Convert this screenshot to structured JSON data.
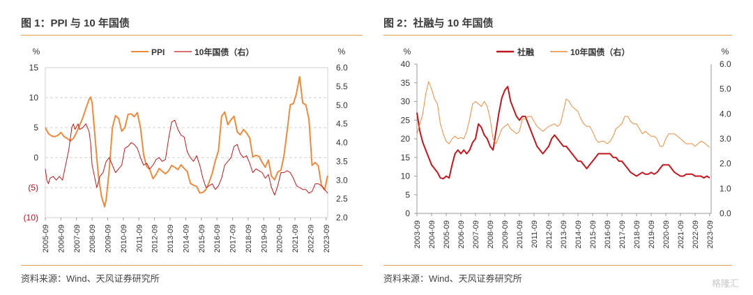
{
  "charts": [
    {
      "title": "图 1：PPI 与 10 年国债",
      "source": "资料来源：Wind、天风证券研究所",
      "left_unit": "%",
      "right_unit": "%",
      "left_tick_labels": [
        "15",
        "10",
        "5",
        "0",
        "(5)",
        "(10)"
      ],
      "left_tick_values": [
        15,
        10,
        5,
        0,
        -5,
        -10
      ],
      "left_tick_colors": [
        "#333333",
        "#333333",
        "#333333",
        "#333333",
        "#d0021b",
        "#d0021b"
      ],
      "right_tick_labels": [
        "6.0",
        "5.5",
        "5.0",
        "4.5",
        "4.0",
        "3.5",
        "3.0",
        "2.5",
        "2.0"
      ],
      "right_tick_values": [
        6.0,
        5.5,
        5.0,
        4.5,
        4.0,
        3.5,
        3.0,
        2.5,
        2.0
      ],
      "x_tick_labels": [
        "2005-09",
        "2006-09",
        "2007-09",
        "2008-09",
        "2009-09",
        "2010-09",
        "2011-09",
        "2012-09",
        "2013-09",
        "2014-09",
        "2015-09",
        "2016-09",
        "2017-09",
        "2018-09",
        "2019-09",
        "2020-09",
        "2021-09",
        "2022-09",
        "2023-09"
      ]
    },
    {
      "title": "图 2：社融与 10 年国债",
      "source": "资料来源：Wind、天风证券研究所",
      "left_unit": "%",
      "right_unit": "%",
      "left_tick_labels": [
        "40",
        "35",
        "30",
        "25",
        "20",
        "15",
        "10",
        "5",
        "0"
      ],
      "left_tick_values": [
        40,
        35,
        30,
        25,
        20,
        15,
        10,
        5,
        0
      ],
      "right_tick_labels": [
        "6.0",
        "5.0",
        "4.0",
        "3.0",
        "2.0",
        "1.0",
        "0.0"
      ],
      "right_tick_values": [
        6.0,
        5.0,
        4.0,
        3.0,
        2.0,
        1.0,
        0.0
      ],
      "x_tick_labels": [
        "2003-09",
        "2004-09",
        "2005-09",
        "2006-09",
        "2007-09",
        "2008-09",
        "2009-09",
        "2010-09",
        "2011-09",
        "2012-09",
        "2013-09",
        "2014-09",
        "2015-09",
        "2016-09",
        "2017-09",
        "2018-09",
        "2019-09",
        "2020-09",
        "2021-09",
        "2022-09",
        "2023-09"
      ]
    }
  ],
  "watermark": "格隆汇",
  "chart_data": [
    {
      "type": "line",
      "title": "图 1：PPI 与 10 年国债",
      "ylabel": "%",
      "y2label": "%",
      "ylim": [
        -10,
        15
      ],
      "y2lim": [
        2.0,
        6.0
      ],
      "xlim": [
        2005.7,
        2023.8
      ],
      "grid": true,
      "legend": "top",
      "series": [
        {
          "name": "PPI",
          "axis": "left",
          "color": "#ed8a3c",
          "width": 2.0,
          "x": [
            2005.7,
            2005.9,
            2006.1,
            2006.3,
            2006.5,
            2006.7,
            2006.9,
            2007.1,
            2007.3,
            2007.5,
            2007.7,
            2007.9,
            2008.1,
            2008.3,
            2008.5,
            2008.6,
            2008.7,
            2008.9,
            2009.1,
            2009.3,
            2009.5,
            2009.6,
            2009.8,
            2010.0,
            2010.2,
            2010.4,
            2010.6,
            2010.8,
            2011.0,
            2011.2,
            2011.4,
            2011.6,
            2011.8,
            2012.0,
            2012.2,
            2012.4,
            2012.6,
            2012.8,
            2013.0,
            2013.2,
            2013.4,
            2013.6,
            2013.8,
            2014.0,
            2014.2,
            2014.4,
            2014.6,
            2014.8,
            2015.0,
            2015.2,
            2015.4,
            2015.6,
            2015.8,
            2016.0,
            2016.2,
            2016.4,
            2016.6,
            2016.8,
            2017.0,
            2017.2,
            2017.4,
            2017.6,
            2017.8,
            2018.0,
            2018.2,
            2018.4,
            2018.6,
            2018.8,
            2019.0,
            2019.2,
            2019.4,
            2019.6,
            2019.8,
            2020.0,
            2020.2,
            2020.4,
            2020.6,
            2020.8,
            2021.0,
            2021.2,
            2021.4,
            2021.6,
            2021.8,
            2022.0,
            2022.2,
            2022.4,
            2022.6,
            2022.8,
            2023.0,
            2023.2,
            2023.4,
            2023.6,
            2023.8
          ],
          "y": [
            5.0,
            4.0,
            3.6,
            3.5,
            3.7,
            4.2,
            3.5,
            3.2,
            2.8,
            3.2,
            4.2,
            5.4,
            6.6,
            8.2,
            9.7,
            10.1,
            9.2,
            3.0,
            -3.0,
            -6.5,
            -8.2,
            -7.0,
            -2.0,
            5.0,
            7.0,
            6.5,
            4.4,
            5.0,
            7.2,
            7.3,
            6.8,
            7.5,
            5.0,
            0.5,
            -1.5,
            -2.0,
            -3.5,
            -2.8,
            -1.8,
            -2.3,
            -2.7,
            -2.2,
            -1.3,
            -1.6,
            -2.0,
            -1.2,
            -1.8,
            -2.3,
            -4.3,
            -4.6,
            -4.8,
            -5.9,
            -5.8,
            -5.3,
            -4.1,
            -2.6,
            -0.5,
            1.2,
            6.9,
            7.6,
            5.5,
            6.3,
            6.9,
            4.3,
            3.8,
            4.7,
            4.1,
            3.3,
            0.1,
            0.4,
            0.2,
            -0.8,
            -1.6,
            -0.4,
            -3.1,
            -3.7,
            -2.4,
            -2.1,
            0.3,
            4.4,
            8.8,
            9.0,
            10.7,
            13.5,
            9.1,
            8.8,
            6.4,
            -1.3,
            -0.8,
            -1.4,
            -4.6,
            -5.4,
            -3.0
          ]
        },
        {
          "name": "10年国债（右）",
          "axis": "right",
          "color": "#c0171c",
          "width": 1.0,
          "x": [
            2005.7,
            2005.8,
            2005.9,
            2006.0,
            2006.2,
            2006.4,
            2006.6,
            2006.8,
            2007.0,
            2007.2,
            2007.4,
            2007.5,
            2007.6,
            2007.8,
            2007.9,
            2008.1,
            2008.3,
            2008.5,
            2008.6,
            2008.7,
            2008.9,
            2009.0,
            2009.2,
            2009.4,
            2009.6,
            2009.8,
            2010.0,
            2010.2,
            2010.4,
            2010.6,
            2010.8,
            2011.0,
            2011.2,
            2011.4,
            2011.6,
            2011.8,
            2012.0,
            2012.2,
            2012.4,
            2012.6,
            2012.8,
            2013.0,
            2013.2,
            2013.4,
            2013.6,
            2013.8,
            2014.0,
            2014.2,
            2014.4,
            2014.6,
            2014.8,
            2015.0,
            2015.2,
            2015.4,
            2015.6,
            2015.8,
            2016.0,
            2016.2,
            2016.4,
            2016.6,
            2016.8,
            2017.0,
            2017.2,
            2017.4,
            2017.6,
            2017.8,
            2018.0,
            2018.2,
            2018.4,
            2018.6,
            2018.8,
            2019.0,
            2019.2,
            2019.4,
            2019.6,
            2019.8,
            2020.0,
            2020.2,
            2020.4,
            2020.6,
            2020.8,
            2021.0,
            2021.2,
            2021.4,
            2021.6,
            2021.8,
            2022.0,
            2022.2,
            2022.4,
            2022.6,
            2022.8,
            2023.0,
            2023.2,
            2023.4,
            2023.6,
            2023.8
          ],
          "y": [
            3.3,
            3.0,
            2.9,
            3.05,
            3.1,
            3.0,
            3.1,
            3.0,
            3.4,
            3.8,
            4.4,
            4.5,
            4.35,
            4.5,
            4.35,
            4.4,
            4.5,
            4.3,
            4.0,
            3.4,
            3.0,
            2.8,
            3.1,
            3.2,
            3.5,
            3.6,
            3.4,
            3.2,
            3.3,
            3.4,
            3.85,
            3.9,
            4.0,
            3.95,
            3.85,
            3.6,
            3.4,
            3.45,
            3.3,
            3.4,
            3.55,
            3.6,
            3.5,
            3.55,
            4.1,
            4.55,
            4.6,
            4.35,
            4.2,
            4.15,
            3.75,
            3.6,
            3.5,
            3.65,
            3.4,
            3.05,
            2.8,
            2.85,
            2.9,
            2.75,
            2.85,
            3.05,
            3.4,
            3.5,
            3.6,
            3.9,
            3.95,
            3.7,
            3.6,
            3.65,
            3.45,
            3.2,
            3.3,
            3.25,
            3.2,
            3.05,
            3.15,
            2.8,
            2.6,
            2.85,
            3.2,
            3.2,
            3.25,
            3.2,
            3.05,
            2.85,
            2.8,
            2.75,
            2.75,
            2.65,
            2.7,
            2.9,
            2.9,
            2.85,
            2.75,
            2.65
          ]
        }
      ]
    },
    {
      "type": "line",
      "title": "图 2：社融与 10 年国债",
      "ylabel": "%",
      "y2label": "%",
      "ylim": [
        0,
        40
      ],
      "y2lim": [
        0.0,
        6.0
      ],
      "xlim": [
        2003.7,
        2023.8
      ],
      "grid": false,
      "legend": "top",
      "series": [
        {
          "name": "社融",
          "axis": "left",
          "color": "#c0171c",
          "width": 2.0,
          "x": [
            2003.7,
            2003.9,
            2004.1,
            2004.3,
            2004.5,
            2004.7,
            2004.9,
            2005.1,
            2005.3,
            2005.5,
            2005.7,
            2005.9,
            2006.1,
            2006.3,
            2006.5,
            2006.7,
            2006.9,
            2007.1,
            2007.3,
            2007.5,
            2007.7,
            2007.9,
            2008.1,
            2008.3,
            2008.5,
            2008.7,
            2008.9,
            2009.1,
            2009.3,
            2009.5,
            2009.7,
            2009.9,
            2010.1,
            2010.3,
            2010.5,
            2010.7,
            2010.9,
            2011.1,
            2011.3,
            2011.5,
            2011.7,
            2011.9,
            2012.1,
            2012.3,
            2012.5,
            2012.7,
            2012.9,
            2013.1,
            2013.3,
            2013.5,
            2013.7,
            2013.9,
            2014.1,
            2014.3,
            2014.5,
            2014.7,
            2014.9,
            2015.1,
            2015.3,
            2015.5,
            2015.7,
            2015.9,
            2016.1,
            2016.3,
            2016.5,
            2016.7,
            2016.9,
            2017.1,
            2017.3,
            2017.5,
            2017.7,
            2017.9,
            2018.1,
            2018.3,
            2018.5,
            2018.7,
            2018.9,
            2019.1,
            2019.3,
            2019.5,
            2019.7,
            2019.9,
            2020.1,
            2020.3,
            2020.5,
            2020.7,
            2020.9,
            2021.1,
            2021.3,
            2021.5,
            2021.7,
            2021.9,
            2022.1,
            2022.3,
            2022.5,
            2022.7,
            2022.9,
            2023.1,
            2023.3,
            2023.5,
            2023.7
          ],
          "y": [
            27,
            22,
            19,
            17,
            15,
            13,
            12,
            11,
            9.5,
            9.3,
            10,
            9.5,
            13,
            16,
            17,
            16,
            17,
            16,
            17,
            19,
            20,
            24,
            23,
            21,
            20,
            18,
            17,
            22,
            27,
            31,
            33,
            34,
            30,
            28,
            26,
            25,
            26,
            26,
            24,
            22,
            20,
            18,
            17,
            16,
            17,
            18,
            20,
            21,
            20,
            19,
            18,
            18,
            17,
            16,
            15,
            14,
            14,
            13,
            12,
            13,
            14,
            15,
            16,
            16,
            16,
            16,
            16,
            15,
            15,
            14,
            14,
            13,
            12,
            11,
            10.5,
            10,
            10.5,
            11,
            10.5,
            10.5,
            11,
            10.5,
            11,
            12,
            13,
            13,
            13,
            12,
            11,
            10.5,
            10,
            10,
            10.5,
            10.5,
            10.5,
            10,
            10,
            10,
            9.5,
            10,
            9.5
          ]
        },
        {
          "name": "10年国债（右）",
          "axis": "right",
          "color": "#ed8a3c",
          "width": 1.0,
          "x": [
            2003.7,
            2003.9,
            2004.1,
            2004.3,
            2004.5,
            2004.7,
            2004.9,
            2005.1,
            2005.3,
            2005.5,
            2005.7,
            2005.9,
            2006.1,
            2006.3,
            2006.5,
            2006.7,
            2006.9,
            2007.1,
            2007.3,
            2007.5,
            2007.7,
            2007.9,
            2008.1,
            2008.3,
            2008.5,
            2008.7,
            2008.9,
            2009.1,
            2009.3,
            2009.5,
            2009.7,
            2009.9,
            2010.1,
            2010.3,
            2010.5,
            2010.7,
            2010.9,
            2011.1,
            2011.3,
            2011.5,
            2011.7,
            2011.9,
            2012.1,
            2012.3,
            2012.5,
            2012.7,
            2012.9,
            2013.1,
            2013.3,
            2013.5,
            2013.7,
            2013.9,
            2014.1,
            2014.3,
            2014.5,
            2014.7,
            2014.9,
            2015.1,
            2015.3,
            2015.5,
            2015.7,
            2015.9,
            2016.1,
            2016.3,
            2016.5,
            2016.7,
            2016.9,
            2017.1,
            2017.3,
            2017.5,
            2017.7,
            2017.9,
            2018.1,
            2018.3,
            2018.5,
            2018.7,
            2018.9,
            2019.1,
            2019.3,
            2019.5,
            2019.7,
            2019.9,
            2020.1,
            2020.3,
            2020.5,
            2020.7,
            2020.9,
            2021.1,
            2021.3,
            2021.5,
            2021.7,
            2021.9,
            2022.1,
            2022.3,
            2022.5,
            2022.7,
            2022.9,
            2023.1,
            2023.3,
            2023.5,
            2023.7
          ],
          "y": [
            3.2,
            3.6,
            4.0,
            4.8,
            5.3,
            5.0,
            4.6,
            4.4,
            3.6,
            3.2,
            2.9,
            2.8,
            3.0,
            3.1,
            3.0,
            3.05,
            3.0,
            3.3,
            3.8,
            4.4,
            4.5,
            4.4,
            4.3,
            4.5,
            4.3,
            3.8,
            3.0,
            2.8,
            3.1,
            3.4,
            3.5,
            3.6,
            3.4,
            3.3,
            3.2,
            3.3,
            3.8,
            3.8,
            3.9,
            3.9,
            3.7,
            3.5,
            3.4,
            3.3,
            3.4,
            3.5,
            3.55,
            3.6,
            3.5,
            3.6,
            4.1,
            4.6,
            4.5,
            4.3,
            4.2,
            4.1,
            3.8,
            3.6,
            3.5,
            3.5,
            3.3,
            3.0,
            2.85,
            2.9,
            2.9,
            2.8,
            2.9,
            3.1,
            3.4,
            3.5,
            3.6,
            3.9,
            3.9,
            3.7,
            3.6,
            3.6,
            3.4,
            3.2,
            3.3,
            3.2,
            3.1,
            3.1,
            3.0,
            2.7,
            2.7,
            3.0,
            3.2,
            3.2,
            3.2,
            3.1,
            3.0,
            2.9,
            2.8,
            2.8,
            2.8,
            2.7,
            2.8,
            2.9,
            2.85,
            2.75,
            2.65
          ]
        }
      ]
    }
  ]
}
